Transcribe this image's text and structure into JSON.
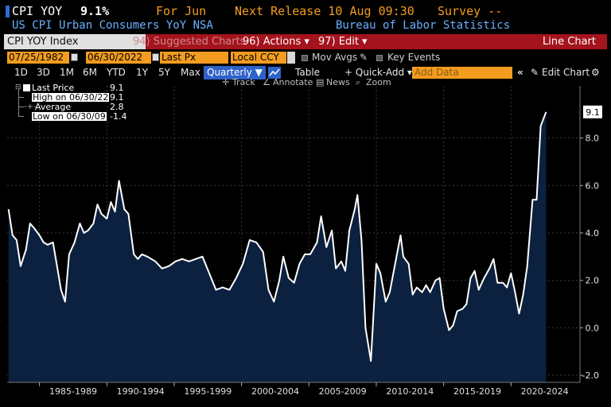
{
  "header": {
    "ticker": "CPI YOY",
    "value": "9.1%",
    "period": "For Jun",
    "next_release": "Next Release 10 Aug 09:30",
    "survey": "Survey --",
    "name": "US CPI Urban Consumers YoY NSA",
    "source": "Bureau of Labor Statistics"
  },
  "menubar": {
    "index_label": "CPI YOY Index",
    "suggested": "94) Suggested Charts",
    "actions": "96) Actions ▾",
    "edit": "97) Edit ▾",
    "chart_type": "Line Chart"
  },
  "daterow": {
    "start": "07/25/1982",
    "end": "06/30/2022",
    "field": "Last Px",
    "currency": "Local CCY",
    "mov_avgs": "Mov Avgs",
    "key_events": "Key Events"
  },
  "tabs": {
    "items": [
      "1D",
      "3D",
      "1M",
      "6M",
      "YTD",
      "1Y",
      "5Y",
      "Max"
    ],
    "frequency": "Quarterly ▼",
    "table": "Table",
    "quick_add": "+ Quick-Add ▾",
    "add_data_placeholder": "Add Data",
    "edit_chart": "Edit Chart"
  },
  "toolbar": {
    "track": "Track",
    "annotate": "Annotate",
    "news": "News",
    "zoom": "Zoom"
  },
  "legend": {
    "last_price_label": "Last Price",
    "last_price_value": "9.1",
    "high_label": "High on 06/30/22",
    "high_value": "9.1",
    "average_label": "Average",
    "average_value": "2.8",
    "low_label": "Low on 06/30/09",
    "low_value": "-1.4"
  },
  "colors": {
    "accent_orange": "#f39c1f",
    "brand_red": "#a5131c",
    "area_fill": "#0c2140",
    "line": "#ffffff"
  },
  "chart_data": {
    "type": "area",
    "last_value_label": "9.1",
    "ylim": [
      -2.3,
      10.2
    ],
    "yticks": [
      "-2.0",
      "0.0",
      "2.0",
      "4.0",
      "6.0",
      "8.0"
    ],
    "xticks": [
      "1985-1989",
      "1990-1994",
      "1995-1999",
      "2000-2004",
      "2005-2009",
      "2010-2014",
      "2015-2019",
      "2020-2024"
    ],
    "x_range": [
      1982.5,
      2024.9
    ],
    "series": [
      {
        "x": [
          1982.6,
          1982.9,
          1983.2,
          1983.5,
          1983.9,
          1984.2,
          1984.5,
          1984.9,
          1985.2,
          1985.5,
          1985.9,
          1986.2,
          1986.5,
          1986.8,
          1987.1,
          1987.5,
          1987.9,
          1988.2,
          1988.5,
          1988.9,
          1989.2,
          1989.5,
          1989.9,
          1990.2,
          1990.5,
          1990.8,
          1991.2,
          1991.5,
          1991.9,
          1992.2,
          1992.5,
          1992.9,
          1993.5,
          1994.0,
          1994.5,
          1995.0,
          1995.5,
          1996.0,
          1996.5,
          1997.0,
          1997.5,
          1998.0,
          1998.5,
          1999.0,
          1999.5,
          2000.0,
          2000.5,
          2001.0,
          2001.5,
          2001.9,
          2002.3,
          2002.7,
          2003.0,
          2003.4,
          2003.8,
          2004.2,
          2004.6,
          2005.0,
          2005.5,
          2005.8,
          2006.2,
          2006.6,
          2006.9,
          2007.3,
          2007.6,
          2007.9,
          2008.3,
          2008.5,
          2008.8,
          2009.1,
          2009.5,
          2009.9,
          2010.2,
          2010.6,
          2010.9,
          2011.3,
          2011.7,
          2011.9,
          2012.3,
          2012.6,
          2012.9,
          2013.3,
          2013.6,
          2013.9,
          2014.3,
          2014.6,
          2014.9,
          2015.3,
          2015.6,
          2015.9,
          2016.3,
          2016.6,
          2016.9,
          2017.2,
          2017.5,
          2017.9,
          2018.3,
          2018.6,
          2018.9,
          2019.3,
          2019.6,
          2019.9,
          2020.2,
          2020.5,
          2020.8,
          2021.1,
          2021.5,
          2021.8,
          2022.1,
          2022.5
        ],
        "y": [
          5.0,
          3.9,
          3.7,
          2.6,
          3.3,
          4.4,
          4.2,
          3.9,
          3.6,
          3.5,
          3.6,
          2.6,
          1.6,
          1.1,
          3.1,
          3.6,
          4.4,
          4.0,
          4.1,
          4.4,
          5.2,
          4.8,
          4.6,
          5.3,
          4.9,
          6.2,
          5.0,
          4.8,
          3.1,
          2.9,
          3.1,
          3.0,
          2.8,
          2.5,
          2.6,
          2.8,
          2.9,
          2.8,
          2.9,
          3.0,
          2.3,
          1.6,
          1.7,
          1.6,
          2.1,
          2.7,
          3.7,
          3.6,
          3.2,
          1.6,
          1.1,
          2.0,
          3.0,
          2.1,
          1.9,
          2.7,
          3.1,
          3.1,
          3.6,
          4.7,
          3.4,
          4.1,
          2.5,
          2.8,
          2.4,
          4.1,
          5.0,
          5.6,
          3.7,
          0.0,
          -1.4,
          2.7,
          2.3,
          1.1,
          1.5,
          2.7,
          3.9,
          3.0,
          2.7,
          1.4,
          1.7,
          1.5,
          1.8,
          1.5,
          2.0,
          2.1,
          0.8,
          -0.1,
          0.1,
          0.7,
          0.8,
          1.0,
          2.1,
          2.4,
          1.6,
          2.1,
          2.5,
          2.9,
          1.9,
          1.9,
          1.7,
          2.3,
          1.5,
          0.6,
          1.4,
          2.6,
          5.4,
          5.4,
          8.5,
          9.1
        ]
      }
    ]
  }
}
